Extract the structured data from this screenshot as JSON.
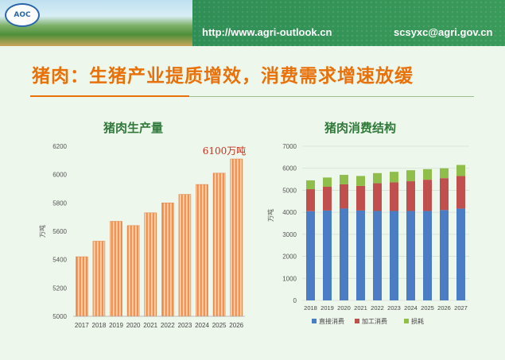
{
  "header": {
    "logo_text": "AOC",
    "url": "http://www.agri-outlook.cn",
    "email": "scsyxc@agri.gov.cn"
  },
  "title": "猪肉：生猪产业提质增效，消费需求增速放缓",
  "colors": {
    "accent": "#e8710a",
    "production_bar": "#f3b98a",
    "production_stripe": "#e4894a",
    "direct": "#4a7dc4",
    "processing": "#c0504d",
    "loss": "#8fbf4a"
  },
  "chart_data": [
    {
      "type": "bar",
      "title": "猪肉生产量",
      "ylabel": "万吨",
      "categories": [
        "2017",
        "2018",
        "2019",
        "2020",
        "2021",
        "2022",
        "2023",
        "2024",
        "2025",
        "2026"
      ],
      "values": [
        5420,
        5530,
        5670,
        5640,
        5730,
        5800,
        5860,
        5930,
        6010,
        6110
      ],
      "ylim": [
        5000,
        6200
      ],
      "yticks": [
        5000,
        5200,
        5400,
        5600,
        5800,
        6000,
        6200
      ],
      "annotation": "6100万吨",
      "grid": false
    },
    {
      "type": "bar",
      "stacked": true,
      "title": "猪肉消费结构",
      "ylabel": "万吨",
      "categories": [
        "2018",
        "2019",
        "2020",
        "2021",
        "2022",
        "2023",
        "2024",
        "2025",
        "2026",
        "2027"
      ],
      "ylim": [
        0,
        7000
      ],
      "yticks": [
        0,
        1000,
        2000,
        3000,
        4000,
        5000,
        6000,
        7000
      ],
      "grid": true,
      "legend": "bottom",
      "series": [
        {
          "name": "直接消费",
          "values": [
            4050,
            4080,
            4170,
            4080,
            4060,
            4060,
            4060,
            4060,
            4100,
            4170
          ]
        },
        {
          "name": "加工消费",
          "values": [
            1000,
            1080,
            1100,
            1120,
            1260,
            1300,
            1350,
            1420,
            1450,
            1480
          ]
        },
        {
          "name": "损耗",
          "values": [
            400,
            420,
            430,
            450,
            460,
            480,
            500,
            480,
            450,
            500
          ]
        }
      ]
    }
  ]
}
